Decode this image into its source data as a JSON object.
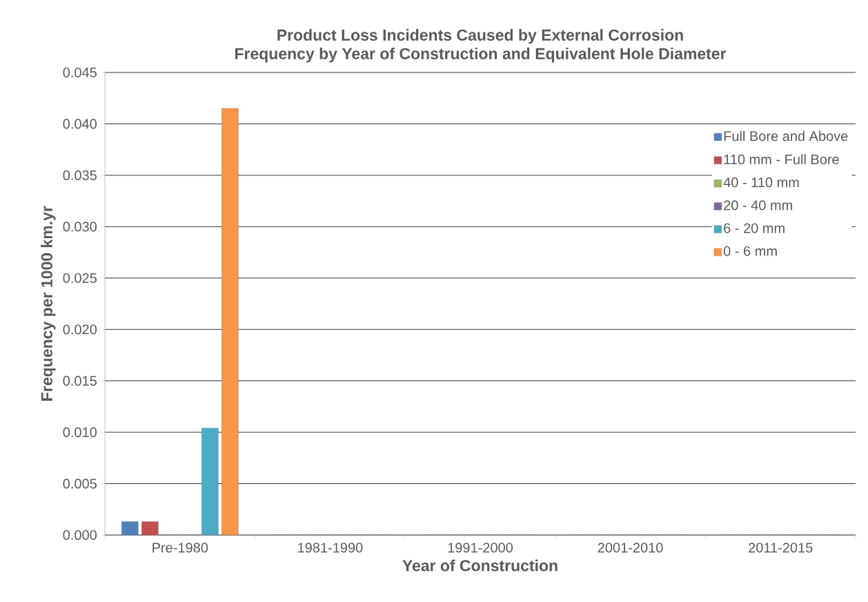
{
  "chart_data": {
    "type": "bar",
    "title": "Product Loss Incidents Caused by External Corrosion",
    "subtitle": "Frequency by Year of Construction and Equivalent Hole Diameter",
    "xlabel": "Year of Construction",
    "ylabel": "Frequency per 1000 km.yr",
    "categories": [
      "Pre-1980",
      "1981-1990",
      "1991-2000",
      "2001-2010",
      "2011-2015"
    ],
    "series": [
      {
        "name": "Full Bore and Above",
        "color": "#4f81bd",
        "values": [
          0.0013,
          0,
          0,
          0,
          0
        ]
      },
      {
        "name": "110 mm - Full Bore",
        "color": "#c0504d",
        "values": [
          0.0013,
          0,
          0,
          0,
          0
        ]
      },
      {
        "name": "40 - 110 mm",
        "color": "#9bbb59",
        "values": [
          0,
          0,
          0,
          0,
          0
        ]
      },
      {
        "name": "20 - 40 mm",
        "color": "#8064a2",
        "values": [
          0,
          0,
          0,
          0,
          0
        ]
      },
      {
        "name": "6 - 20 mm",
        "color": "#4bacc6",
        "values": [
          0.0104,
          0,
          0,
          0,
          0
        ]
      },
      {
        "name": "0 - 6 mm",
        "color": "#f79646",
        "values": [
          0.0415,
          0,
          0,
          0,
          0
        ]
      }
    ],
    "ylim": [
      0,
      0.045
    ],
    "yticks": [
      {
        "value": 0,
        "label": "0.000"
      },
      {
        "value": 0.005,
        "label": "0.005"
      },
      {
        "value": 0.01,
        "label": "0.010"
      },
      {
        "value": 0.015,
        "label": "0.015"
      },
      {
        "value": 0.02,
        "label": "0.020"
      },
      {
        "value": 0.025,
        "label": "0.025"
      },
      {
        "value": 0.03,
        "label": "0.030"
      },
      {
        "value": 0.035,
        "label": "0.035"
      },
      {
        "value": 0.04,
        "label": "0.040"
      },
      {
        "value": 0.045,
        "label": "0.045"
      }
    ],
    "grid": "y",
    "legend": "top right"
  }
}
